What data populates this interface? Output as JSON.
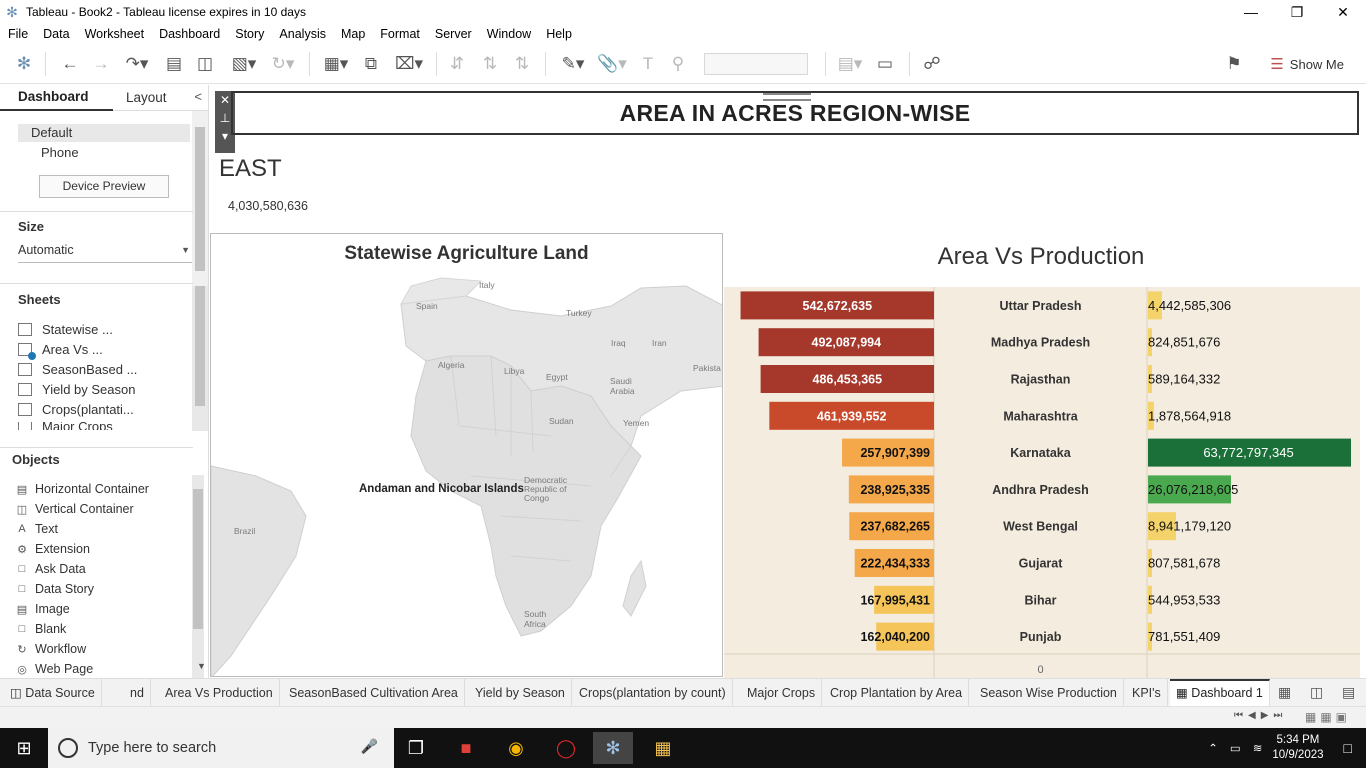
{
  "window": {
    "title": "Tableau - Book2 - Tableau license expires in 10 days",
    "controls": [
      "minimize",
      "restore",
      "close"
    ]
  },
  "menu": [
    "File",
    "Data",
    "Worksheet",
    "Dashboard",
    "Story",
    "Analysis",
    "Map",
    "Format",
    "Server",
    "Window",
    "Help"
  ],
  "toolbar": {
    "show_me": "Show Me"
  },
  "left_panel": {
    "tab_dashboard": "Dashboard",
    "tab_layout": "Layout",
    "device_default": "Default",
    "device_phone": "Phone",
    "device_preview": "Device Preview",
    "size_header": "Size",
    "size_value": "Automatic",
    "sheets_header": "Sheets",
    "sheets": [
      "Statewise ...",
      "Area Vs ...",
      "SeasonBased ...",
      "Yield by Season",
      "Crops(plantati...",
      "Major Crops"
    ],
    "objects_header": "Objects",
    "objects": [
      "Horizontal Container",
      "Vertical Container",
      "Text",
      "Extension",
      "Ask Data",
      "Data Story",
      "Image",
      "Blank",
      "Workflow",
      "Web Page"
    ]
  },
  "dashboard": {
    "title": "AREA IN ACRES REGION-WISE",
    "region_label": "EAST",
    "region_value": "4,030,580,636",
    "map_title": "Statewise Agriculture Land",
    "map_mark_label": "Andaman and Nicobar Islands",
    "map_labels": [
      "Spain",
      "Italy",
      "Turkey",
      "Algeria",
      "Libya",
      "Egypt",
      "Iraq",
      "Iran",
      "Pakista",
      "Saudi Arabia",
      "Sudan",
      "Yemen",
      "Brazil",
      "Democratic Republic of Congo",
      "South Africa"
    ],
    "chart_title": "Area Vs Production"
  },
  "chart_data": {
    "type": "bar",
    "title": "Area Vs Production",
    "categories": [
      "Uttar Pradesh",
      "Madhya Pradesh",
      "Rajasthan",
      "Maharashtra",
      "Karnataka",
      "Andhra Pradesh",
      "West Bengal",
      "Gujarat",
      "Bihar",
      "Punjab"
    ],
    "series": [
      {
        "values": [
          542672635,
          492087994,
          486453365,
          461939552,
          257907399,
          238925335,
          237682265,
          222434333,
          167995431,
          162040200
        ]
      },
      {
        "values": [
          4442585306,
          824851676,
          589164332,
          1878564918,
          63772797345,
          26076218605,
          8941179120,
          807581678,
          544953533,
          781551409
        ]
      }
    ],
    "labels_left": [
      "542,672,635",
      "492,087,994",
      "486,453,365",
      "461,939,552",
      "257,907,399",
      "238,925,335",
      "237,682,265",
      "222,434,333",
      "167,995,431",
      "162,040,200"
    ],
    "labels_right": [
      "4,442,585,306",
      "824,851,676",
      "589,164,332",
      "1,878,564,918",
      "63,772,797,345",
      "26,076,218,605",
      "8,941,179,120",
      "807,581,678",
      "544,953,533",
      "781,551,409"
    ],
    "axis_zero": "0",
    "colors": {
      "left_dark": "#a5382b",
      "left_mid": "#c94a2a",
      "left_light_orange": "#f4a84a",
      "left_yellow": "#f5c55a",
      "right_yellow": "#f4d36a",
      "right_green_dark": "#1a7038",
      "right_green_mid": "#4aa84e",
      "background": "#f4ecdf"
    }
  },
  "sheet_tabs": [
    "Data Source",
    "nd",
    "Area Vs Production",
    "SeasonBased Cultivation Area",
    "Yield by Season",
    "Crops(plantation by count)",
    "Major Crops",
    "Crop Plantation by Area",
    "Season Wise Production",
    "KPI's",
    "Dashboard 1"
  ],
  "taskbar": {
    "search_placeholder": "Type here to search",
    "time": "5:34 PM",
    "date": "10/9/2023"
  }
}
